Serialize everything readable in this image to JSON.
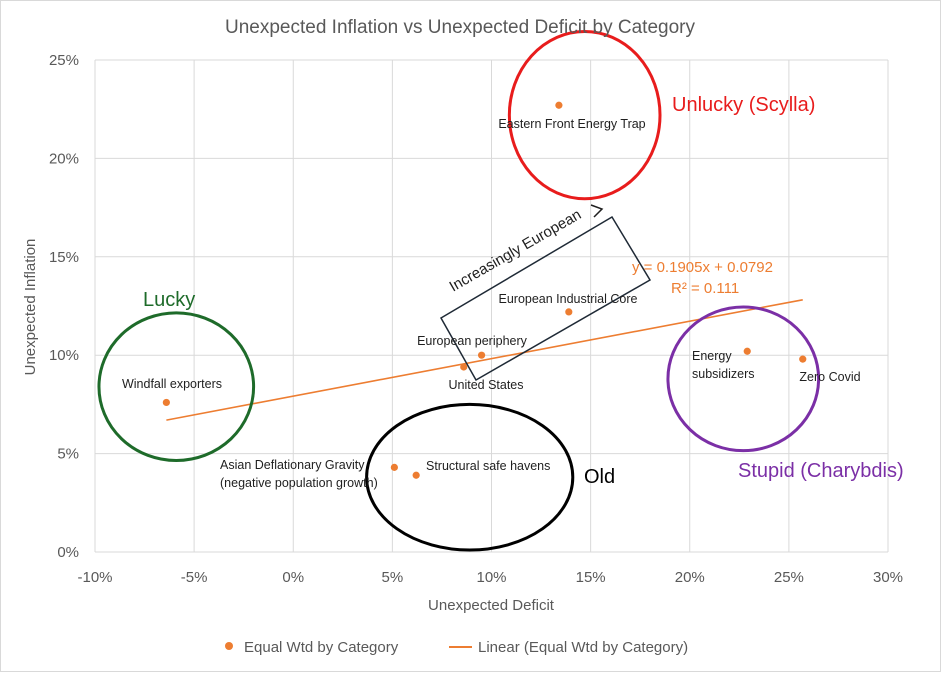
{
  "chart_data": {
    "type": "scatter",
    "title": "Unexpected Inflation vs Unexpected Deficit by Category",
    "xlabel": "Unexpected Deficit",
    "ylabel": "Unexpected Inflation",
    "xlim": [
      -0.1,
      0.3
    ],
    "ylim": [
      0,
      0.25
    ],
    "x_ticks": [
      -0.1,
      -0.05,
      0,
      0.05,
      0.1,
      0.15,
      0.2,
      0.25,
      0.3
    ],
    "x_tick_labels": [
      "-10%",
      "-5%",
      "0%",
      "5%",
      "10%",
      "15%",
      "20%",
      "25%",
      "30%"
    ],
    "y_ticks": [
      0,
      0.05,
      0.1,
      0.15,
      0.2,
      0.25
    ],
    "y_tick_labels": [
      "0%",
      "5%",
      "10%",
      "15%",
      "20%",
      "25%"
    ],
    "grid": true,
    "legend_position": "bottom",
    "series": [
      {
        "name": "Equal Wtd by Category",
        "color": "#ED7D31",
        "points": [
          {
            "label": "Eastern Front Energy Trap",
            "x": 0.134,
            "y": 0.227
          },
          {
            "label": "European Industrial Core",
            "x": 0.139,
            "y": 0.122
          },
          {
            "label": "European periphery",
            "x": 0.095,
            "y": 0.1
          },
          {
            "label": "United States",
            "x": 0.086,
            "y": 0.094
          },
          {
            "label": "Windfall exporters",
            "x": -0.064,
            "y": 0.076
          },
          {
            "label": "Asian Deflationary Gravity (negative population growth)",
            "x": 0.051,
            "y": 0.043
          },
          {
            "label": "Structural safe havens",
            "x": 0.062,
            "y": 0.039
          },
          {
            "label": "Energy subsidizers",
            "x": 0.229,
            "y": 0.102
          },
          {
            "label": "Zero Covid",
            "x": 0.257,
            "y": 0.098
          }
        ]
      }
    ],
    "trendline": {
      "name": "Linear (Equal Wtd by Category)",
      "color": "#ED7D31",
      "slope": 0.1905,
      "intercept": 0.0792,
      "x_range": [
        -0.064,
        0.257
      ],
      "equation_label": "y = 0.1905x + 0.0792",
      "r2_label": "R² = 0.111"
    },
    "annotations": [
      {
        "kind": "circle",
        "text": "Unlucky (Scylla)",
        "color": "#E81C1C",
        "cx": 0.147,
        "cy": 0.222,
        "rx": 0.038,
        "ry": 0.0425
      },
      {
        "kind": "circle",
        "text": "Lucky",
        "color": "#1E6B2A",
        "cx": -0.059,
        "cy": 0.084,
        "rx": 0.039,
        "ry": 0.0375
      },
      {
        "kind": "circle",
        "text": "Old",
        "color": "#000000",
        "cx": 0.089,
        "cy": 0.038,
        "rx": 0.052,
        "ry": 0.037
      },
      {
        "kind": "circle",
        "text": "Stupid (Charybdis)",
        "color": "#7B2FA6",
        "cx": 0.227,
        "cy": 0.088,
        "rx": 0.038,
        "ry": 0.0365
      },
      {
        "kind": "arrow",
        "text": "Increasingly European",
        "color": "#000000"
      }
    ]
  }
}
